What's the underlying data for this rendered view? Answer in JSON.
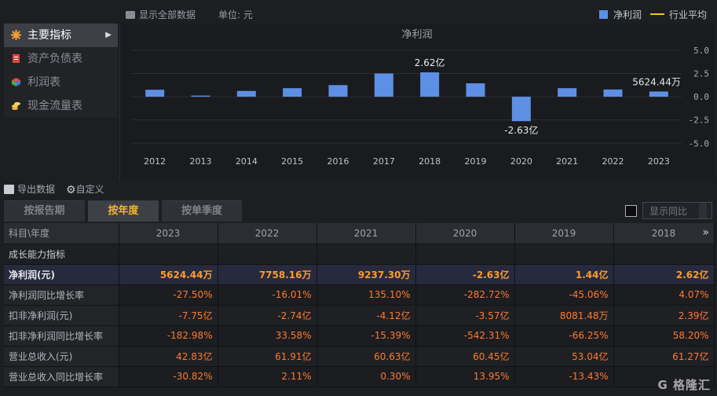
{
  "top_toolbar": {
    "show_all_label": "显示全部数据",
    "unit_label": "单位: 元"
  },
  "legend": {
    "series_label": "净利润",
    "industry_label": "行业平均",
    "series_color": "#5d8fe5",
    "industry_color": "#f5c518"
  },
  "sidebar": {
    "items": [
      {
        "label": "主要指标",
        "icon": "asterisk-icon",
        "active": true
      },
      {
        "label": "资产负债表",
        "icon": "document-icon",
        "active": false
      },
      {
        "label": "利润表",
        "icon": "cube-icon",
        "active": false
      },
      {
        "label": "现金流量表",
        "icon": "coins-icon",
        "active": false
      }
    ]
  },
  "chart_data": {
    "type": "bar",
    "title": "净利润",
    "categories": [
      "2012",
      "2013",
      "2014",
      "2015",
      "2016",
      "2017",
      "2018",
      "2019",
      "2020",
      "2021",
      "2022",
      "2023"
    ],
    "series": [
      {
        "name": "净利润",
        "values": [
          0.75,
          0.12,
          0.62,
          0.92,
          1.25,
          2.5,
          2.62,
          1.44,
          -2.63,
          0.92,
          0.78,
          0.56
        ]
      }
    ],
    "unit": "亿",
    "ylim": [
      -6.5,
      5.5
    ],
    "yticks": [
      "5.0",
      "2.5",
      "0.0",
      "-2.5",
      "-5.0"
    ],
    "data_labels": [
      {
        "category": "2018",
        "text": "2.62亿"
      },
      {
        "category": "2020",
        "text": "-2.63亿"
      },
      {
        "category": "2023",
        "text": "5624.44万"
      }
    ],
    "grid": true,
    "legend_position": "top-right"
  },
  "toolbar": {
    "export_label": "导出数据",
    "custom_label": "自定义"
  },
  "tabs": [
    {
      "label": "按报告期",
      "active": false
    },
    {
      "label": "按年度",
      "active": true
    },
    {
      "label": "按单季度",
      "active": false
    }
  ],
  "yoy_toggle": {
    "label": "显示同比"
  },
  "table": {
    "header": [
      "科目\\年度",
      "2023",
      "2022",
      "2021",
      "2020",
      "2019",
      "2018"
    ],
    "rows": [
      {
        "label": "成长能力指标",
        "cells": [
          "",
          "",
          "",
          "",
          "",
          ""
        ],
        "type": "section"
      },
      {
        "label": "净利润(元)",
        "cells": [
          "5624.44万",
          "7758.16万",
          "9237.30万",
          "-2.63亿",
          "1.44亿",
          "2.62亿"
        ],
        "type": "highlight"
      },
      {
        "label": "净利润同比增长率",
        "cells": [
          "-27.50%",
          "-16.01%",
          "135.10%",
          "-282.72%",
          "-45.06%",
          "4.07%"
        ],
        "type": "normal"
      },
      {
        "label": "扣非净利润(元)",
        "cells": [
          "-7.75亿",
          "-2.74亿",
          "-4.12亿",
          "-3.57亿",
          "8081.48万",
          "2.39亿"
        ],
        "type": "alt"
      },
      {
        "label": "扣非净利润同比增长率",
        "cells": [
          "-182.98%",
          "33.58%",
          "-15.39%",
          "-542.31%",
          "-66.25%",
          "58.20%"
        ],
        "type": "normal"
      },
      {
        "label": "营业总收入(元)",
        "cells": [
          "42.83亿",
          "61.91亿",
          "60.63亿",
          "60.45亿",
          "53.04亿",
          "61.27亿"
        ],
        "type": "alt"
      },
      {
        "label": "营业总收入同比增长率",
        "cells": [
          "-30.82%",
          "2.11%",
          "0.30%",
          "13.95%",
          "-13.43%",
          ""
        ],
        "type": "normal"
      }
    ]
  },
  "watermark": "格隆汇"
}
